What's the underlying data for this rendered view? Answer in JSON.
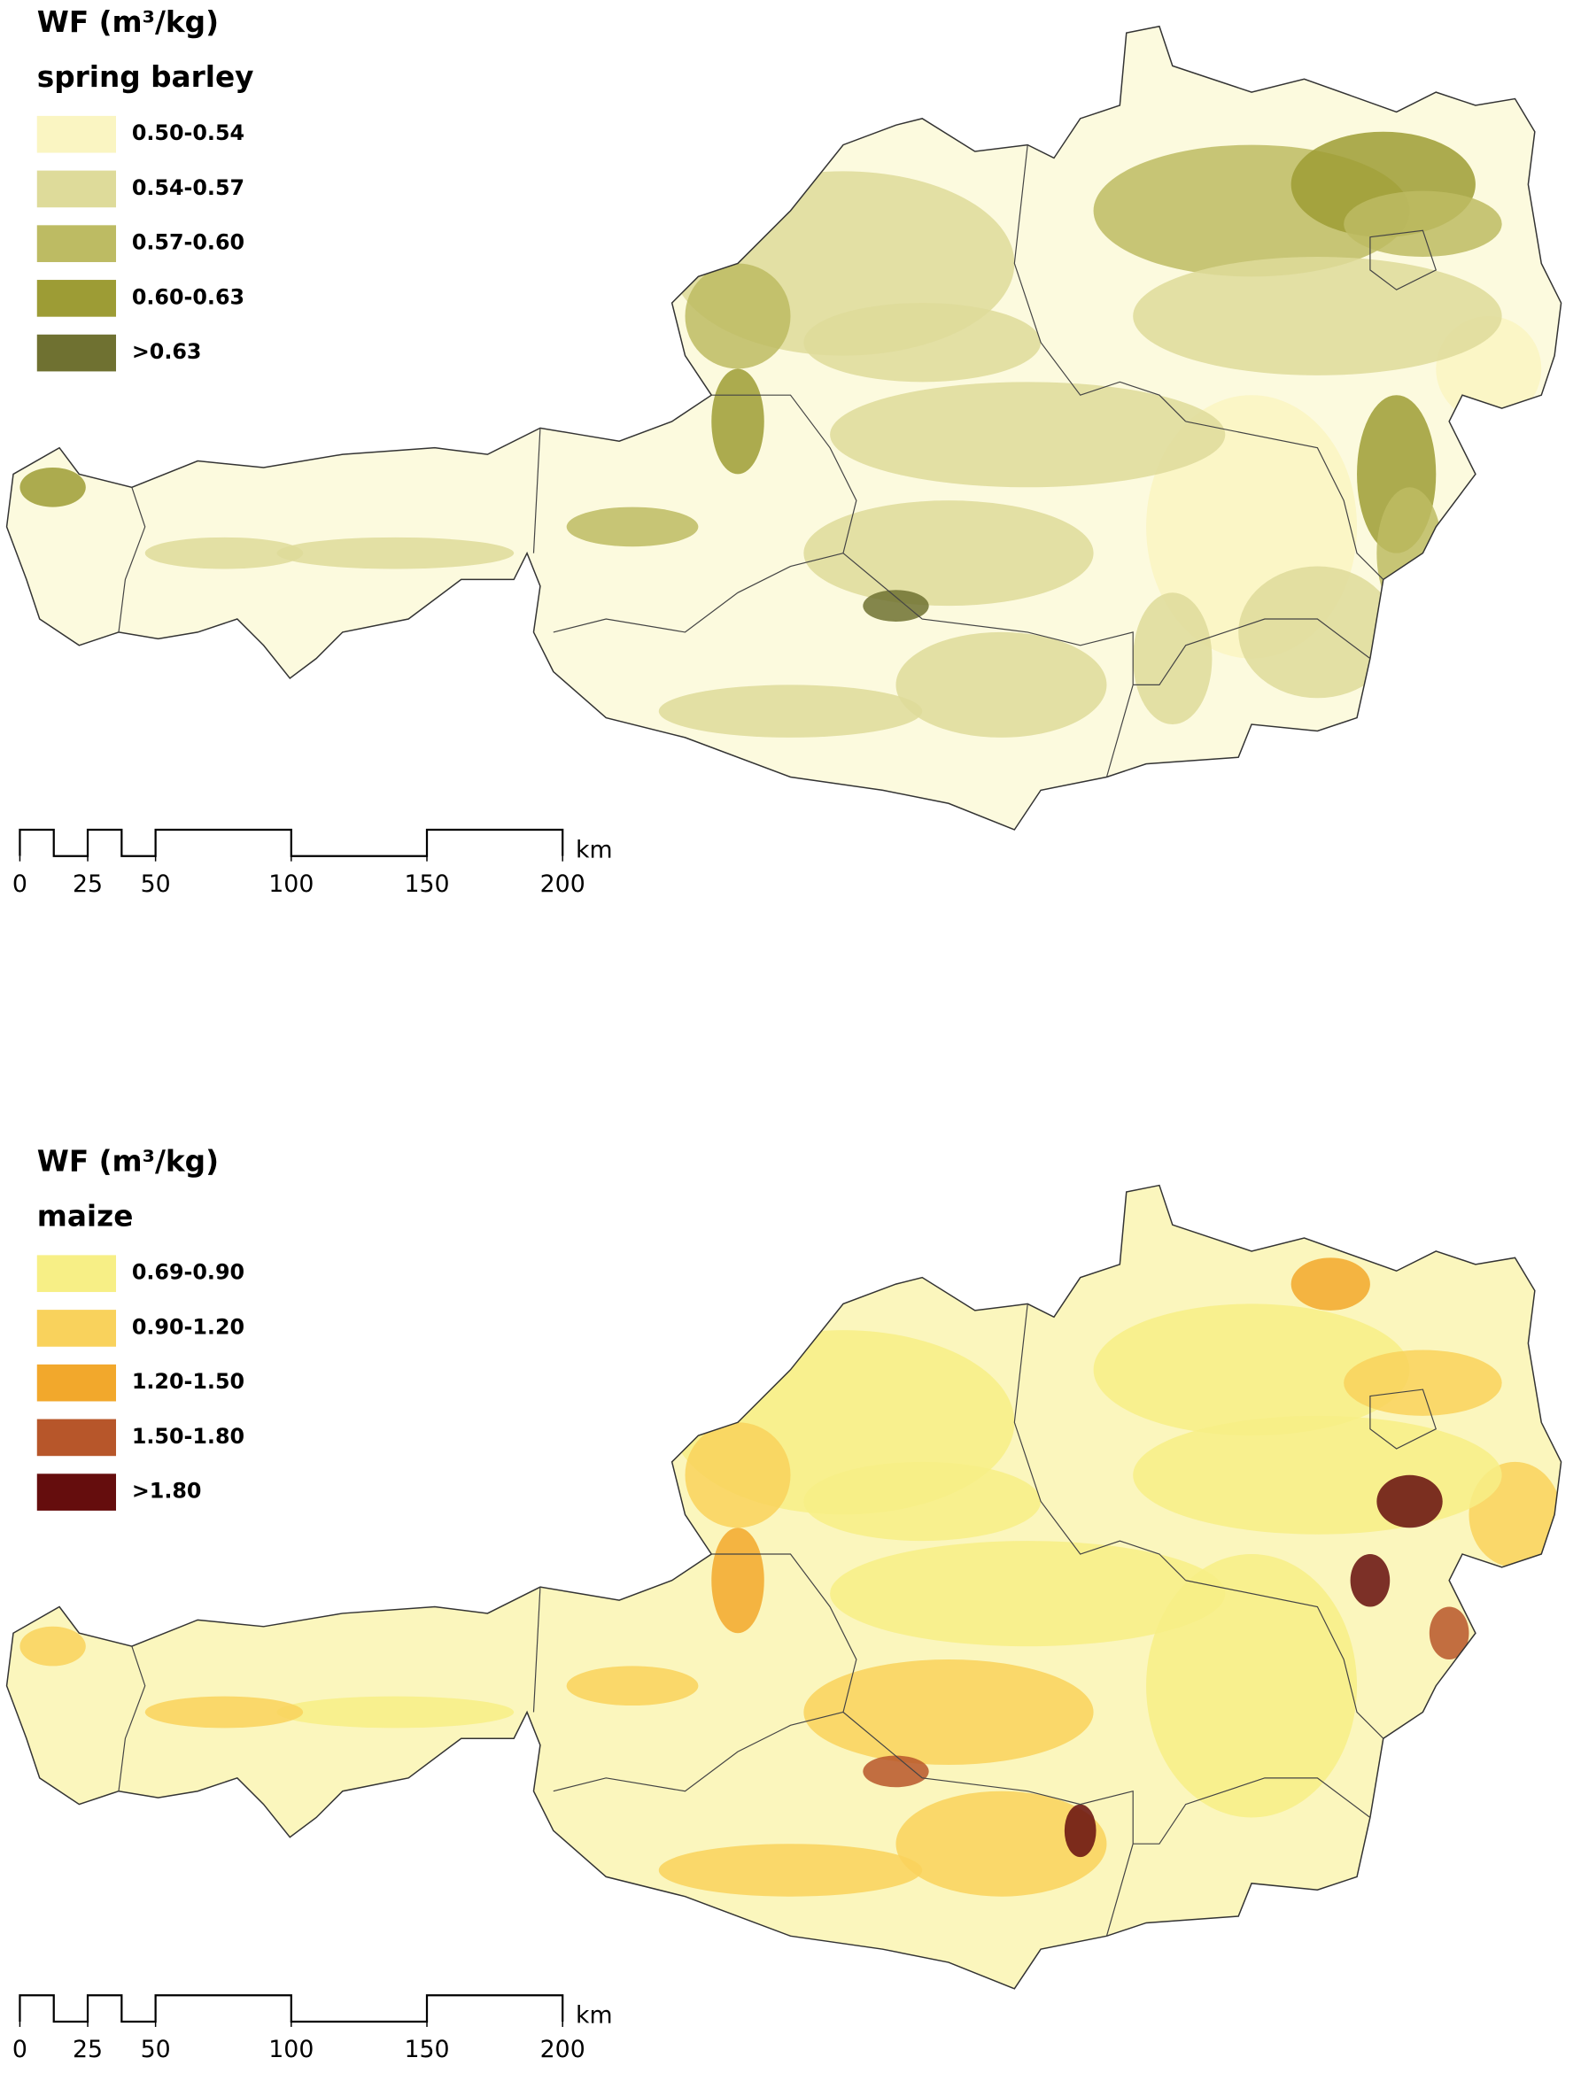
{
  "maps": [
    {
      "legend_title": "WF (m³/kg)",
      "crop": "spring barley",
      "classes": [
        {
          "label": "0.50-0.54",
          "color": "#faf5c2"
        },
        {
          "label": "0.54-0.57",
          "color": "#dedb9a"
        },
        {
          "label": "0.57-0.60",
          "color": "#bdbb63"
        },
        {
          "label": "0.60-0.63",
          "color": "#9d9c35"
        },
        {
          "label": ">0.63",
          "color": "#6f7131"
        }
      ],
      "scale_bar": {
        "ticks": [
          "0",
          "25",
          "50",
          "100",
          "150",
          "200"
        ],
        "unit": "km"
      }
    },
    {
      "legend_title": "WF (m³/kg)",
      "crop": "maize",
      "classes": [
        {
          "label": "0.69-0.90",
          "color": "#f7ef86"
        },
        {
          "label": "0.90-1.20",
          "color": "#f9d25c"
        },
        {
          "label": "1.20-1.50",
          "color": "#f2a82c"
        },
        {
          "label": "1.50-1.80",
          "color": "#b7562a"
        },
        {
          "label": ">1.80",
          "color": "#650d0d"
        }
      ],
      "scale_bar": {
        "ticks": [
          "0",
          "25",
          "50",
          "100",
          "150",
          "200"
        ],
        "unit": "km"
      }
    }
  ]
}
